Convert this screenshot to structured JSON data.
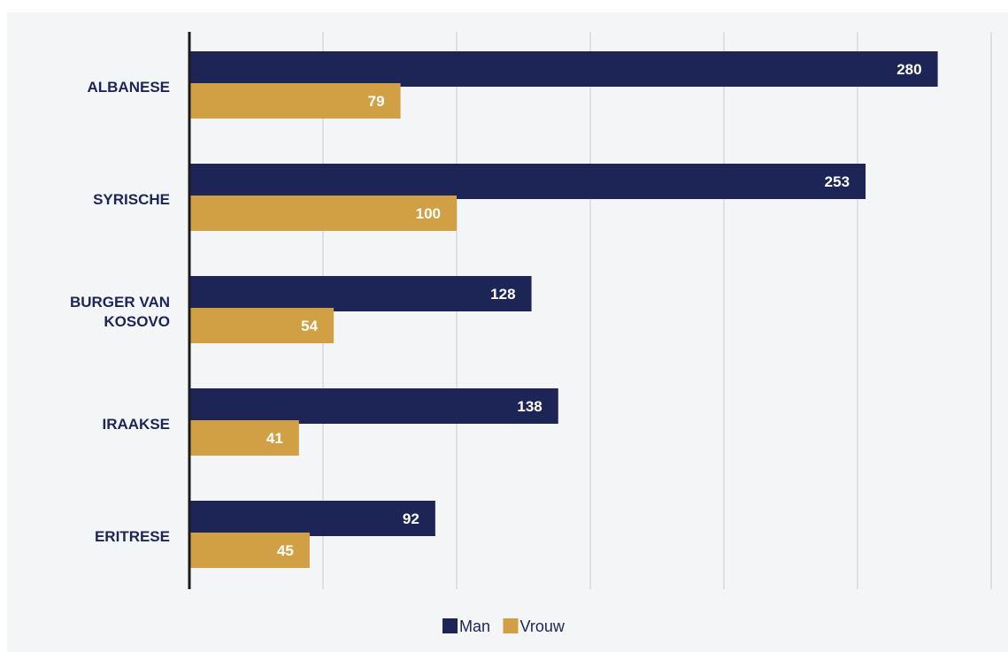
{
  "chart_data": {
    "type": "bar",
    "orientation": "horizontal",
    "categories": [
      [
        "ALBANESE"
      ],
      [
        "SYRISCHE"
      ],
      [
        "BURGER VAN",
        "KOSOVO"
      ],
      [
        "IRAAKSE"
      ],
      [
        "ERITRESE"
      ]
    ],
    "series": [
      {
        "name": "Man",
        "values": [
          280,
          253,
          128,
          138,
          92
        ],
        "color": "#1d2557"
      },
      {
        "name": "Vrouw",
        "values": [
          79,
          100,
          54,
          41,
          45
        ],
        "color": "#d1a044"
      }
    ],
    "xlim": [
      0,
      300
    ],
    "vertical_grid": true,
    "legend_position": "bottom",
    "data_labels": true
  }
}
